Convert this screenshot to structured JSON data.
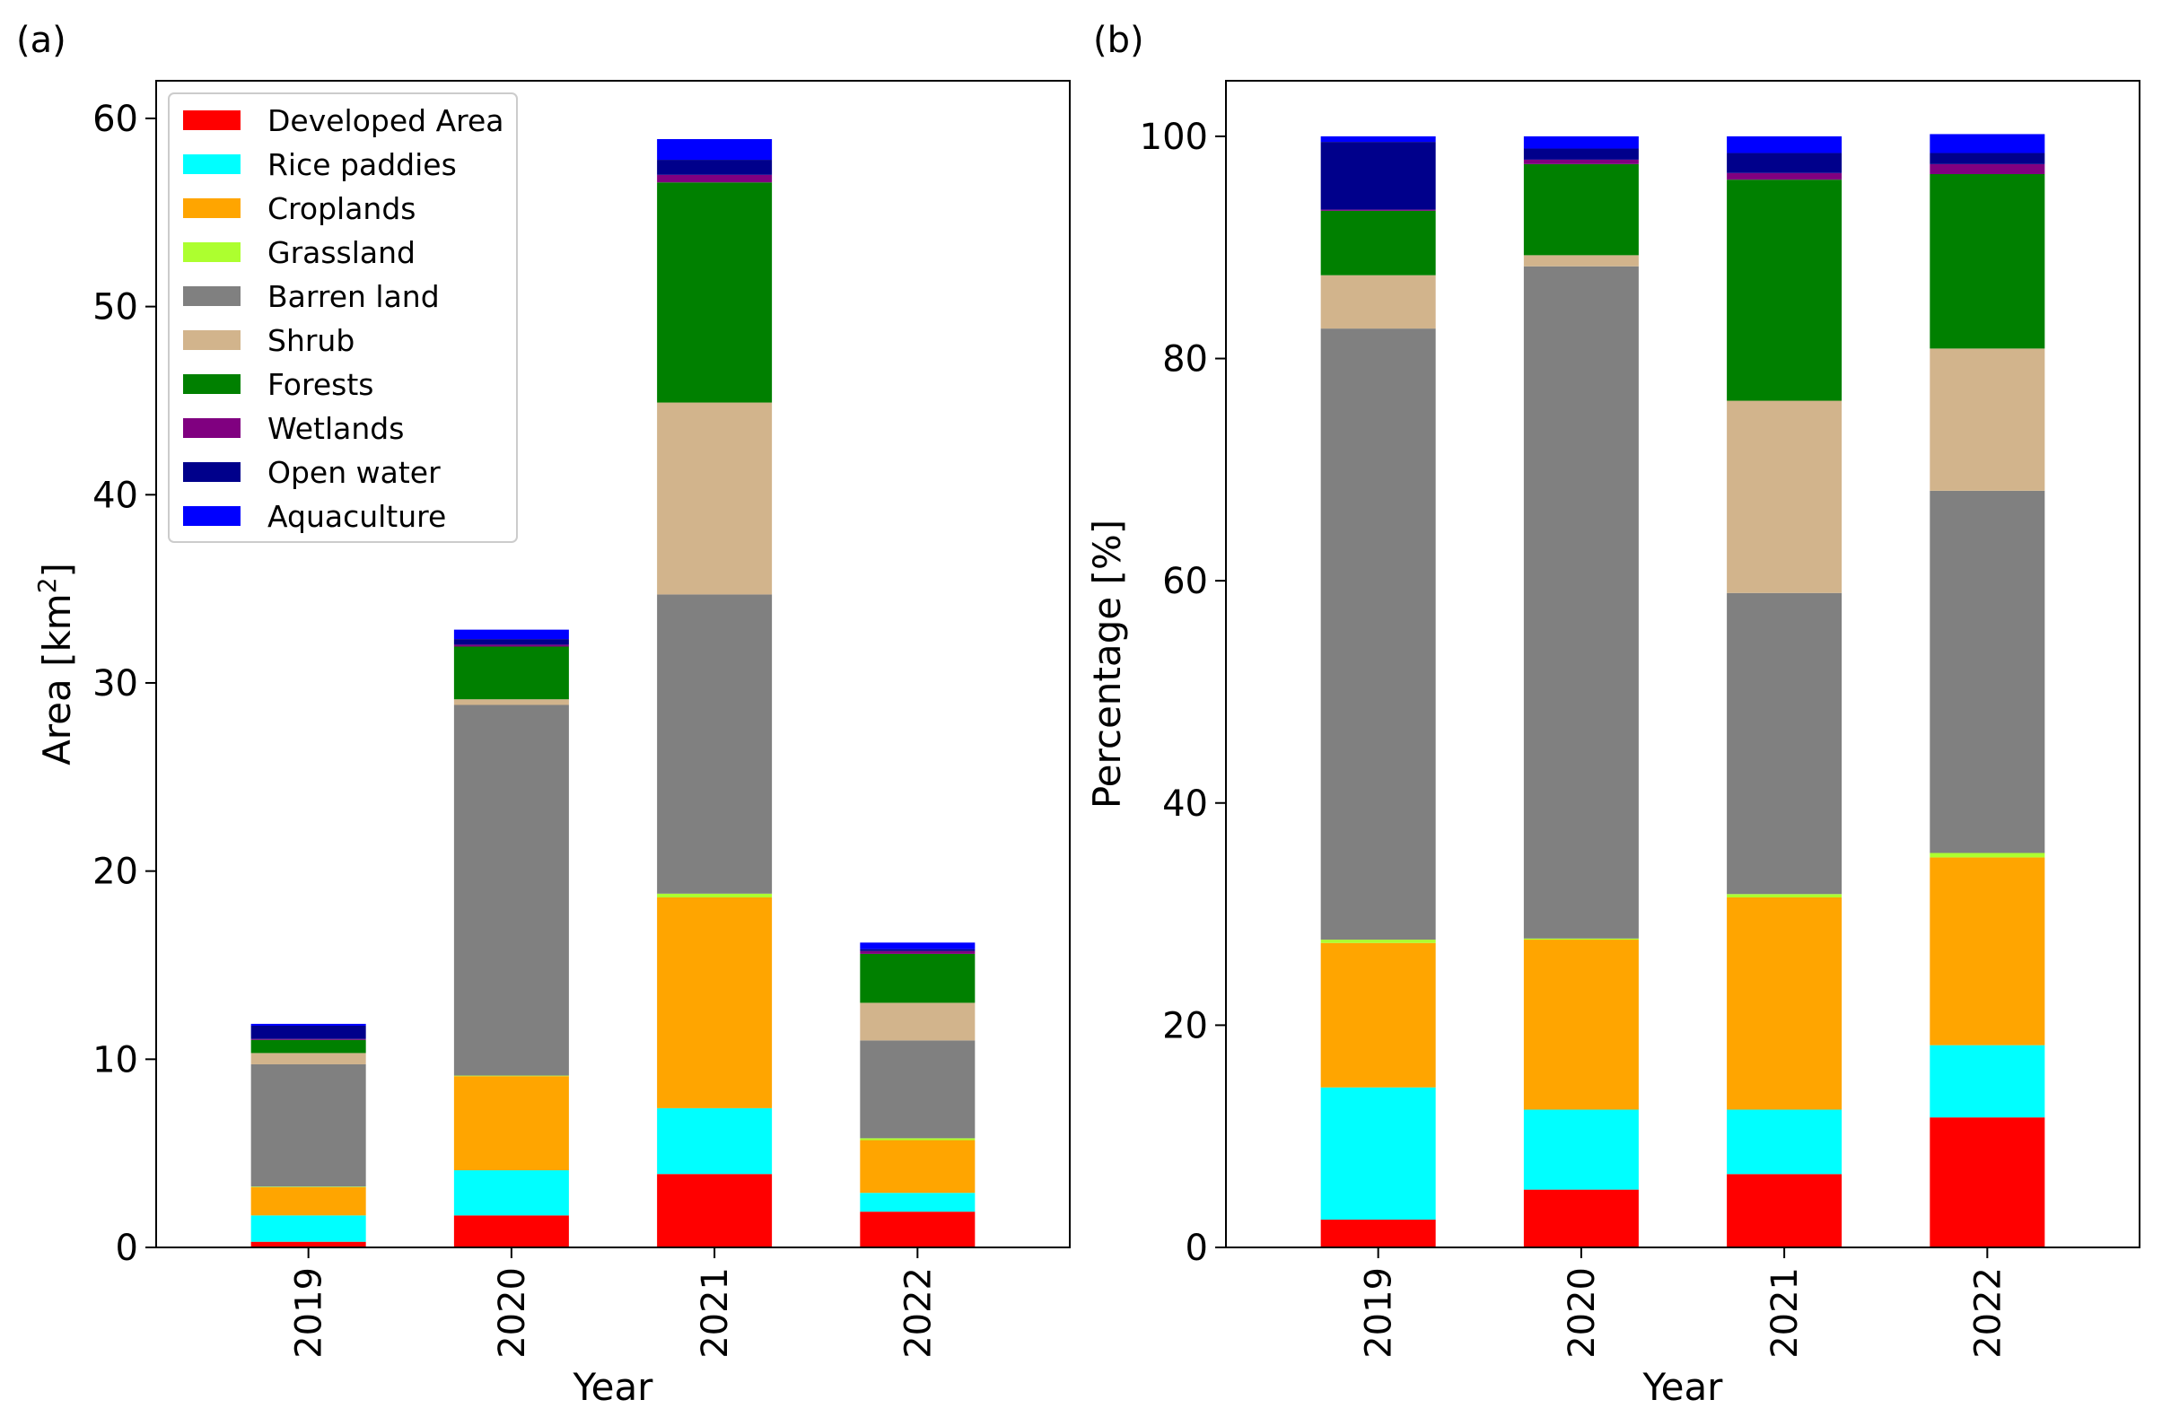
{
  "chart_data": [
    {
      "panel": "(a)",
      "type": "bar",
      "stacked": true,
      "xlabel": "Year",
      "ylabel": "Area [km²]",
      "ylabel_base": "Area [km",
      "ylabel_sup": "2",
      "ylabel_tail": "]",
      "ylim": [
        0,
        62
      ],
      "yticks": [
        0,
        10,
        20,
        30,
        40,
        50,
        60
      ],
      "categories": [
        "2019",
        "2020",
        "2021",
        "2022"
      ],
      "legend_position": "upper-left",
      "series": [
        {
          "name": "Developed Area",
          "color": "#ff0000",
          "values": [
            0.3,
            1.7,
            3.9,
            1.9
          ]
        },
        {
          "name": "Rice paddies",
          "color": "#00ffff",
          "values": [
            1.4,
            2.4,
            3.5,
            1.0
          ]
        },
        {
          "name": "Croplands",
          "color": "#ffa500",
          "values": [
            1.5,
            5.0,
            11.2,
            2.8
          ]
        },
        {
          "name": "Grassland",
          "color": "#adff2f",
          "values": [
            0.03,
            0.03,
            0.2,
            0.1
          ]
        },
        {
          "name": "Barren land",
          "color": "#808080",
          "values": [
            6.5,
            19.7,
            15.9,
            5.2
          ]
        },
        {
          "name": "Shrub",
          "color": "#d2b48c",
          "values": [
            0.6,
            0.3,
            10.2,
            2.0
          ]
        },
        {
          "name": "Forests",
          "color": "#008000",
          "values": [
            0.7,
            2.8,
            11.7,
            2.6
          ]
        },
        {
          "name": "Wetlands",
          "color": "#800080",
          "values": [
            0.05,
            0.1,
            0.4,
            0.15
          ]
        },
        {
          "name": "Open water",
          "color": "#00008b",
          "values": [
            0.7,
            0.3,
            0.8,
            0.1
          ]
        },
        {
          "name": "Aquaculture",
          "color": "#0000ff",
          "values": [
            0.1,
            0.5,
            1.1,
            0.35
          ]
        }
      ]
    },
    {
      "panel": "(b)",
      "type": "bar",
      "stacked": true,
      "xlabel": "Year",
      "ylabel": "Percentage [%]",
      "ylim": [
        0,
        105
      ],
      "yticks": [
        0,
        20,
        40,
        60,
        80,
        100
      ],
      "categories": [
        "2019",
        "2020",
        "2021",
        "2022"
      ],
      "series": [
        {
          "name": "Developed Area",
          "color": "#ff0000",
          "values": [
            2.5,
            5.2,
            6.6,
            11.7
          ]
        },
        {
          "name": "Rice paddies",
          "color": "#00ffff",
          "values": [
            11.9,
            7.2,
            5.8,
            6.5
          ]
        },
        {
          "name": "Croplands",
          "color": "#ffa500",
          "values": [
            13.0,
            15.3,
            19.1,
            16.9
          ]
        },
        {
          "name": "Grassland",
          "color": "#adff2f",
          "values": [
            0.3,
            0.1,
            0.3,
            0.4
          ]
        },
        {
          "name": "Barren land",
          "color": "#808080",
          "values": [
            55.0,
            60.5,
            27.1,
            32.6
          ]
        },
        {
          "name": "Shrub",
          "color": "#d2b48c",
          "values": [
            4.8,
            1.0,
            17.3,
            12.8
          ]
        },
        {
          "name": "Forests",
          "color": "#008000",
          "values": [
            5.8,
            8.2,
            19.9,
            15.7
          ]
        },
        {
          "name": "Wetlands",
          "color": "#800080",
          "values": [
            0.1,
            0.4,
            0.6,
            0.9
          ]
        },
        {
          "name": "Open water",
          "color": "#00008b",
          "values": [
            6.1,
            1.0,
            1.8,
            1.0
          ]
        },
        {
          "name": "Aquaculture",
          "color": "#0000ff",
          "values": [
            0.5,
            1.1,
            1.5,
            1.7
          ]
        }
      ]
    }
  ]
}
